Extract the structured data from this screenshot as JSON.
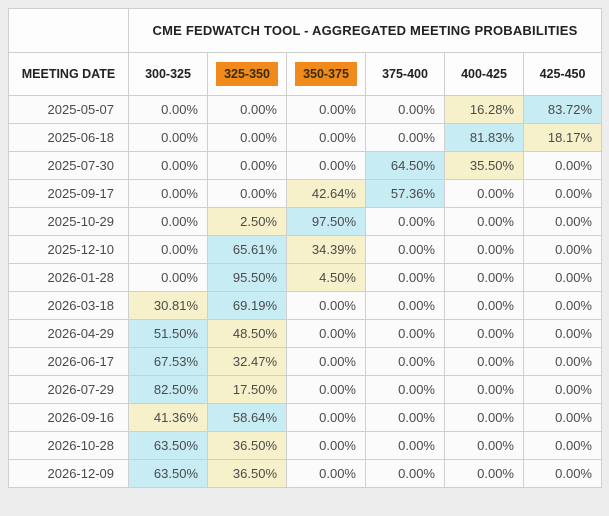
{
  "table": {
    "title": "CME FEDWATCH TOOL - AGGREGATED MEETING PROBABILITIES",
    "date_header": "MEETING DATE",
    "rate_columns": [
      {
        "label": "300-325",
        "highlight": false
      },
      {
        "label": "325-350",
        "highlight": true
      },
      {
        "label": "350-375",
        "highlight": true
      },
      {
        "label": "375-400",
        "highlight": false
      },
      {
        "label": "400-425",
        "highlight": false
      },
      {
        "label": "425-450",
        "highlight": false
      }
    ],
    "rows": [
      {
        "date": "2025-05-07",
        "values": [
          "0.00%",
          "0.00%",
          "0.00%",
          "0.00%",
          "16.28%",
          "83.72%"
        ],
        "tones": [
          "",
          "",
          "",
          "",
          "low",
          "high"
        ]
      },
      {
        "date": "2025-06-18",
        "values": [
          "0.00%",
          "0.00%",
          "0.00%",
          "0.00%",
          "81.83%",
          "18.17%"
        ],
        "tones": [
          "",
          "",
          "",
          "",
          "high",
          "low"
        ]
      },
      {
        "date": "2025-07-30",
        "values": [
          "0.00%",
          "0.00%",
          "0.00%",
          "64.50%",
          "35.50%",
          "0.00%"
        ],
        "tones": [
          "",
          "",
          "",
          "high",
          "low",
          ""
        ]
      },
      {
        "date": "2025-09-17",
        "values": [
          "0.00%",
          "0.00%",
          "42.64%",
          "57.36%",
          "0.00%",
          "0.00%"
        ],
        "tones": [
          "",
          "",
          "low",
          "high",
          "",
          ""
        ]
      },
      {
        "date": "2025-10-29",
        "values": [
          "0.00%",
          "2.50%",
          "97.50%",
          "0.00%",
          "0.00%",
          "0.00%"
        ],
        "tones": [
          "",
          "low",
          "high",
          "",
          "",
          ""
        ]
      },
      {
        "date": "2025-12-10",
        "values": [
          "0.00%",
          "65.61%",
          "34.39%",
          "0.00%",
          "0.00%",
          "0.00%"
        ],
        "tones": [
          "",
          "high",
          "low",
          "",
          "",
          ""
        ]
      },
      {
        "date": "2026-01-28",
        "values": [
          "0.00%",
          "95.50%",
          "4.50%",
          "0.00%",
          "0.00%",
          "0.00%"
        ],
        "tones": [
          "",
          "high",
          "low",
          "",
          "",
          ""
        ]
      },
      {
        "date": "2026-03-18",
        "values": [
          "30.81%",
          "69.19%",
          "0.00%",
          "0.00%",
          "0.00%",
          "0.00%"
        ],
        "tones": [
          "low",
          "high",
          "",
          "",
          "",
          ""
        ]
      },
      {
        "date": "2026-04-29",
        "values": [
          "51.50%",
          "48.50%",
          "0.00%",
          "0.00%",
          "0.00%",
          "0.00%"
        ],
        "tones": [
          "high",
          "low",
          "",
          "",
          "",
          ""
        ]
      },
      {
        "date": "2026-06-17",
        "values": [
          "67.53%",
          "32.47%",
          "0.00%",
          "0.00%",
          "0.00%",
          "0.00%"
        ],
        "tones": [
          "high",
          "low",
          "",
          "",
          "",
          ""
        ]
      },
      {
        "date": "2026-07-29",
        "values": [
          "82.50%",
          "17.50%",
          "0.00%",
          "0.00%",
          "0.00%",
          "0.00%"
        ],
        "tones": [
          "high",
          "low",
          "",
          "",
          "",
          ""
        ]
      },
      {
        "date": "2026-09-16",
        "values": [
          "41.36%",
          "58.64%",
          "0.00%",
          "0.00%",
          "0.00%",
          "0.00%"
        ],
        "tones": [
          "low",
          "high",
          "",
          "",
          "",
          ""
        ]
      },
      {
        "date": "2026-10-28",
        "values": [
          "63.50%",
          "36.50%",
          "0.00%",
          "0.00%",
          "0.00%",
          "0.00%"
        ],
        "tones": [
          "high",
          "low",
          "",
          "",
          "",
          ""
        ]
      },
      {
        "date": "2026-12-09",
        "values": [
          "63.50%",
          "36.50%",
          "0.00%",
          "0.00%",
          "0.00%",
          "0.00%"
        ],
        "tones": [
          "high",
          "low",
          "",
          "",
          "",
          ""
        ]
      }
    ]
  },
  "colors": {
    "header_highlight": "#F08A1D",
    "cell_high": "#C8ECF3",
    "cell_low": "#F6F1CB"
  }
}
